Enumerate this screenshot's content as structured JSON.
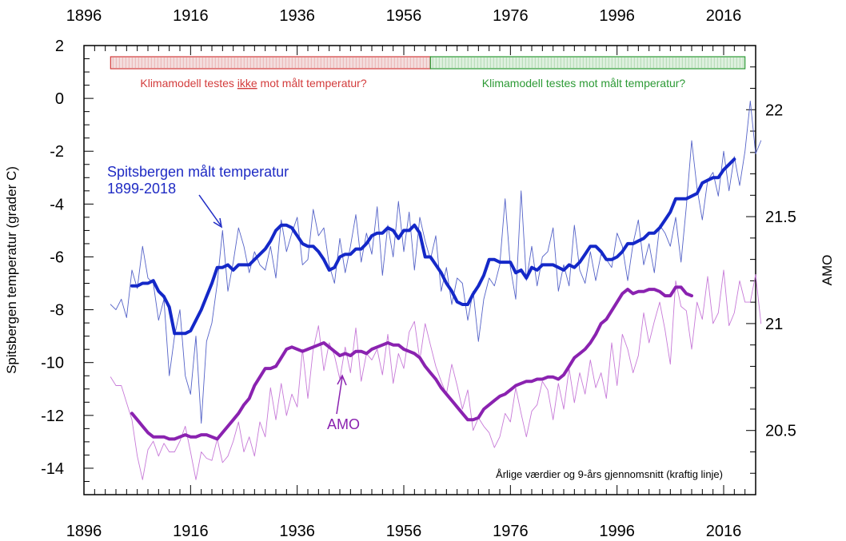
{
  "chart_data": {
    "type": "line",
    "x_ticks": [
      1896,
      1916,
      1936,
      1956,
      1976,
      1996,
      2016
    ],
    "xlim": [
      1896,
      2022
    ],
    "y_left": {
      "label": "Spitsbergen temperatur (grader C)",
      "ticks": [
        2,
        0,
        -2,
        -4,
        -6,
        -8,
        -10,
        -12,
        -14
      ],
      "ylim": [
        -15,
        2
      ]
    },
    "y_right": {
      "label": "AMO",
      "ticks": [
        22,
        21.5,
        21,
        20.5
      ],
      "ylim": [
        20.2,
        22.3
      ]
    },
    "bands": [
      {
        "label_before": "Klimamodell testes ",
        "label_underlined": "ikke",
        "label_after": " mot målt temperatur?",
        "x_start": 1901,
        "x_end": 1961,
        "color": "#d33c3c",
        "fill": "#f3dede"
      },
      {
        "label": "Klimamodell testes mot målt temperatur?",
        "x_start": 1961,
        "x_end": 2020,
        "color": "#2c9a35",
        "fill": "#dff0df"
      }
    ],
    "annotations": {
      "spitsbergen_line1": "Spitsbergen målt temperatur",
      "spitsbergen_line2": "1899-2018",
      "amo": "AMO",
      "note": "Årlige værdier og 9-års gjennomsnitt (kraftig linje)"
    },
    "series": [
      {
        "name": "Spitsbergen årlig",
        "axis": "left",
        "color": "#5563c8",
        "x_start": 1901,
        "values": [
          -7.8,
          -8.0,
          -7.6,
          -8.3,
          -6.5,
          -7.2,
          -5.6,
          -6.8,
          -7.0,
          -8.4,
          -7.6,
          -10.5,
          -9.0,
          -8.0,
          -10.5,
          -11.2,
          -9.0,
          -12.3,
          -9.2,
          -8.5,
          -7.0,
          -5.0,
          -7.3,
          -6.2,
          -4.9,
          -5.6,
          -6.6,
          -5.8,
          -6.3,
          -6.5,
          -5.6,
          -6.8,
          -4.6,
          -5.8,
          -5.1,
          -4.5,
          -6.3,
          -6.1,
          -4.2,
          -5.2,
          -4.9,
          -6.3,
          -7.0,
          -5.3,
          -6.6,
          -5.6,
          -4.4,
          -6.2,
          -5.1,
          -5.9,
          -4.1,
          -6.7,
          -4.8,
          -6.0,
          -3.9,
          -5.8,
          -4.3,
          -6.5,
          -4.5,
          -5.4,
          -6.1,
          -5.2,
          -7.3,
          -6.4,
          -7.8,
          -6.8,
          -7.0,
          -8.4,
          -7.3,
          -9.2,
          -7.6,
          -6.8,
          -7.1,
          -6.3,
          -3.8,
          -6.4,
          -7.6,
          -3.5,
          -6.9,
          -5.6,
          -7.1,
          -6.0,
          -5.8,
          -4.9,
          -7.3,
          -6.3,
          -7.1,
          -4.8,
          -6.5,
          -7.0,
          -5.8,
          -6.9,
          -5.9,
          -6.1,
          -6.4,
          -5.1,
          -5.6,
          -6.9,
          -5.5,
          -4.6,
          -6.3,
          -5.5,
          -6.6,
          -4.8,
          -5.1,
          -5.6,
          -4.5,
          -6.2,
          -4.1,
          -1.6,
          -3.4,
          -4.6,
          -3.1,
          -2.8,
          -3.7,
          -2.0,
          -3.5,
          -2.2,
          -3.3,
          -2.0,
          -0.1,
          -2.1,
          -1.6
        ]
      },
      {
        "name": "Spitsbergen 9-års gjennomsnitt",
        "axis": "left",
        "color": "#1428c8",
        "x_start": 1905,
        "values": [
          -7.1,
          -7.1,
          -7.0,
          -7.0,
          -6.9,
          -7.3,
          -7.5,
          -7.9,
          -8.9,
          -8.9,
          -8.9,
          -8.8,
          -8.4,
          -8.0,
          -7.5,
          -7.0,
          -6.4,
          -6.4,
          -6.3,
          -6.5,
          -6.3,
          -6.3,
          -6.3,
          -6.1,
          -5.9,
          -5.7,
          -5.4,
          -5.0,
          -4.8,
          -4.8,
          -4.9,
          -5.2,
          -5.5,
          -5.6,
          -5.6,
          -5.8,
          -6.1,
          -6.5,
          -6.4,
          -6.0,
          -5.9,
          -5.9,
          -5.7,
          -5.7,
          -5.5,
          -5.2,
          -5.1,
          -5.1,
          -4.9,
          -5.0,
          -5.3,
          -5.0,
          -5.0,
          -4.8,
          -5.1,
          -6.0,
          -6.0,
          -6.3,
          -6.6,
          -7.0,
          -7.3,
          -7.7,
          -7.8,
          -7.8,
          -7.4,
          -7.1,
          -6.7,
          -6.1,
          -6.1,
          -6.2,
          -6.2,
          -6.2,
          -6.6,
          -6.5,
          -6.8,
          -6.4,
          -6.5,
          -6.3,
          -6.3,
          -6.3,
          -6.4,
          -6.5,
          -6.3,
          -6.4,
          -6.2,
          -5.9,
          -5.6,
          -5.6,
          -5.8,
          -6.1,
          -6.1,
          -6.0,
          -5.8,
          -5.5,
          -5.5,
          -5.4,
          -5.3,
          -5.1,
          -5.1,
          -4.9,
          -4.6,
          -4.3,
          -3.8,
          -3.8,
          -3.8,
          -3.7,
          -3.6,
          -3.2,
          -3.1,
          -3.0,
          -3.0,
          -2.7,
          -2.5,
          -2.3
        ]
      },
      {
        "name": "AMO årlig",
        "axis": "right",
        "color": "#c77ad8",
        "x_start": 1901,
        "values": [
          20.75,
          20.71,
          20.71,
          20.63,
          20.55,
          20.38,
          20.27,
          20.41,
          20.45,
          20.38,
          20.44,
          20.4,
          20.4,
          20.45,
          20.52,
          20.4,
          20.27,
          20.4,
          20.37,
          20.36,
          20.46,
          20.35,
          20.38,
          20.45,
          20.54,
          20.4,
          20.47,
          20.38,
          20.54,
          20.47,
          20.7,
          20.55,
          20.72,
          20.57,
          20.67,
          20.61,
          20.88,
          20.65,
          20.88,
          20.99,
          20.78,
          20.91,
          20.85,
          20.74,
          20.89,
          20.77,
          20.98,
          20.73,
          20.86,
          20.83,
          20.88,
          20.76,
          20.95,
          20.72,
          20.86,
          20.79,
          20.96,
          21.01,
          20.83,
          21.0,
          20.9,
          20.8,
          20.73,
          20.67,
          20.81,
          20.71,
          20.6,
          20.69,
          20.5,
          20.56,
          20.52,
          20.49,
          20.42,
          20.47,
          20.58,
          20.54,
          20.7,
          20.58,
          20.47,
          20.59,
          20.62,
          20.73,
          20.69,
          20.55,
          20.72,
          20.6,
          20.79,
          20.63,
          20.77,
          20.67,
          20.83,
          20.7,
          20.77,
          20.65,
          20.91,
          20.71,
          20.95,
          20.88,
          20.77,
          20.85,
          21.05,
          20.91,
          21.01,
          21.1,
          20.97,
          20.81,
          21.2,
          21.08,
          21.06,
          20.88,
          21.1,
          21.02,
          21.22,
          21.0,
          21.05,
          21.25,
          20.99,
          21.05,
          21.2,
          21.1,
          21.1,
          21.23,
          21.0
        ]
      },
      {
        "name": "AMO 9-års gjennomsnitt",
        "axis": "right",
        "color": "#8a22b0",
        "x_start": 1905,
        "values": [
          20.58,
          20.55,
          20.52,
          20.49,
          20.47,
          20.47,
          20.47,
          20.46,
          20.46,
          20.47,
          20.48,
          20.47,
          20.47,
          20.48,
          20.48,
          20.47,
          20.46,
          20.49,
          20.52,
          20.55,
          20.58,
          20.62,
          20.65,
          20.71,
          20.75,
          20.79,
          20.79,
          20.8,
          20.84,
          20.88,
          20.89,
          20.88,
          20.87,
          20.88,
          20.89,
          20.9,
          20.91,
          20.89,
          20.87,
          20.85,
          20.86,
          20.85,
          20.87,
          20.87,
          20.86,
          20.88,
          20.89,
          20.9,
          20.91,
          20.9,
          20.9,
          20.88,
          20.87,
          20.86,
          20.84,
          20.8,
          20.77,
          20.74,
          20.7,
          20.67,
          20.64,
          20.61,
          20.58,
          20.55,
          20.55,
          20.56,
          20.6,
          20.62,
          20.64,
          20.66,
          20.67,
          20.69,
          20.71,
          20.72,
          20.73,
          20.73,
          20.74,
          20.74,
          20.75,
          20.75,
          20.74,
          20.76,
          20.8,
          20.84,
          20.86,
          20.88,
          20.91,
          20.95,
          21.0,
          21.02,
          21.06,
          21.1,
          21.14,
          21.16,
          21.14,
          21.15,
          21.15,
          21.16,
          21.16,
          21.15,
          21.13,
          21.13,
          21.17,
          21.17,
          21.14,
          21.13
        ]
      }
    ]
  }
}
